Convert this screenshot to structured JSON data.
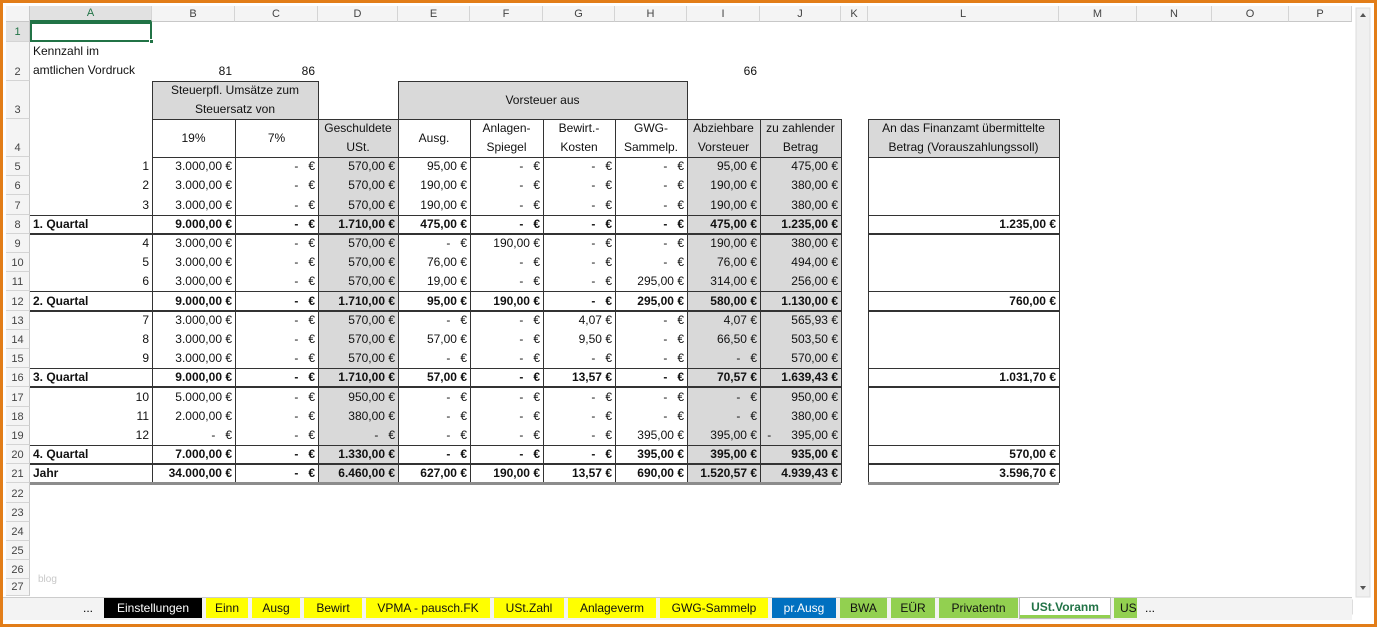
{
  "columns": [
    "A",
    "B",
    "C",
    "D",
    "E",
    "F",
    "G",
    "H",
    "I",
    "J",
    "K",
    "L",
    "M",
    "N",
    "O",
    "P"
  ],
  "rows": [
    {
      "number": "1",
      "cells": {}
    },
    {
      "number": "2",
      "cells": {
        "A": "Kennzahl im amtlichen Vordruck",
        "B": "81",
        "C": "86",
        "I": "66"
      }
    },
    {
      "number": "3",
      "cells": {
        "B": "Steuerpfl. Umsätze zum Steuersatz von",
        "E": "Vorsteuer aus"
      }
    },
    {
      "number": "4",
      "cells": {
        "B": "19%",
        "C": "7%",
        "D": "Geschuldete USt.",
        "E": "Ausg.",
        "F": "Anlagen-Spiegel",
        "G": "Bewirt.-Kosten",
        "H": "GWG-Sammelp.",
        "I": "Abziehbare Vorsteuer",
        "J": "zu zahlender Betrag",
        "L": "An das Finanzamt übermittelte Betrag (Vorauszahlungssoll)"
      }
    },
    {
      "number": "5",
      "cells": {
        "A": "1",
        "B": "3.000,00 €",
        "C": "-   €",
        "D": "570,00 €",
        "E": "95,00 €",
        "F": "-   €",
        "G": "-   €",
        "H": "-   €",
        "I": "95,00 €",
        "J": "475,00 €"
      }
    },
    {
      "number": "6",
      "cells": {
        "A": "2",
        "B": "3.000,00 €",
        "C": "-   €",
        "D": "570,00 €",
        "E": "190,00 €",
        "F": "-   €",
        "G": "-   €",
        "H": "-   €",
        "I": "190,00 €",
        "J": "380,00 €"
      }
    },
    {
      "number": "7",
      "cells": {
        "A": "3",
        "B": "3.000,00 €",
        "C": "-   €",
        "D": "570,00 €",
        "E": "190,00 €",
        "F": "-   €",
        "G": "-   €",
        "H": "-   €",
        "I": "190,00 €",
        "J": "380,00 €"
      }
    },
    {
      "number": "8",
      "cells": {
        "A": "1. Quartal",
        "B": "9.000,00 €",
        "C": "-   €",
        "D": "1.710,00 €",
        "E": "475,00 €",
        "F": "-   €",
        "G": "-   €",
        "H": "-   €",
        "I": "475,00 €",
        "J": "1.235,00 €",
        "L": "1.235,00 €"
      }
    },
    {
      "number": "9",
      "cells": {
        "A": "4",
        "B": "3.000,00 €",
        "C": "-   €",
        "D": "570,00 €",
        "E": "-   €",
        "F": "190,00 €",
        "G": "-   €",
        "H": "-   €",
        "I": "190,00 €",
        "J": "380,00 €"
      }
    },
    {
      "number": "10",
      "cells": {
        "A": "5",
        "B": "3.000,00 €",
        "C": "-   €",
        "D": "570,00 €",
        "E": "76,00 €",
        "F": "-   €",
        "G": "-   €",
        "H": "-   €",
        "I": "76,00 €",
        "J": "494,00 €"
      }
    },
    {
      "number": "11",
      "cells": {
        "A": "6",
        "B": "3.000,00 €",
        "C": "-   €",
        "D": "570,00 €",
        "E": "19,00 €",
        "F": "-   €",
        "G": "-   €",
        "H": "295,00 €",
        "I": "314,00 €",
        "J": "256,00 €"
      }
    },
    {
      "number": "12",
      "cells": {
        "A": "2. Quartal",
        "B": "9.000,00 €",
        "C": "-   €",
        "D": "1.710,00 €",
        "E": "95,00 €",
        "F": "190,00 €",
        "G": "-   €",
        "H": "295,00 €",
        "I": "580,00 €",
        "J": "1.130,00 €",
        "L": "760,00 €"
      }
    },
    {
      "number": "13",
      "cells": {
        "A": "7",
        "B": "3.000,00 €",
        "C": "-   €",
        "D": "570,00 €",
        "E": "-   €",
        "F": "-   €",
        "G": "4,07 €",
        "H": "-   €",
        "I": "4,07 €",
        "J": "565,93 €"
      }
    },
    {
      "number": "14",
      "cells": {
        "A": "8",
        "B": "3.000,00 €",
        "C": "-   €",
        "D": "570,00 €",
        "E": "57,00 €",
        "F": "-   €",
        "G": "9,50 €",
        "H": "-   €",
        "I": "66,50 €",
        "J": "503,50 €"
      }
    },
    {
      "number": "15",
      "cells": {
        "A": "9",
        "B": "3.000,00 €",
        "C": "-   €",
        "D": "570,00 €",
        "E": "-   €",
        "F": "-   €",
        "G": "-   €",
        "H": "-   €",
        "I": "-   €",
        "J": "570,00 €"
      }
    },
    {
      "number": "16",
      "cells": {
        "A": "3. Quartal",
        "B": "9.000,00 €",
        "C": "-   €",
        "D": "1.710,00 €",
        "E": "57,00 €",
        "F": "-   €",
        "G": "13,57 €",
        "H": "-   €",
        "I": "70,57 €",
        "J": "1.639,43 €",
        "L": "1.031,70 €"
      }
    },
    {
      "number": "17",
      "cells": {
        "A": "10",
        "B": "5.000,00 €",
        "C": "-   €",
        "D": "950,00 €",
        "E": "-   €",
        "F": "-   €",
        "G": "-   €",
        "H": "-   €",
        "I": "-   €",
        "J": "950,00 €"
      }
    },
    {
      "number": "18",
      "cells": {
        "A": "11",
        "B": "2.000,00 €",
        "C": "-   €",
        "D": "380,00 €",
        "E": "-   €",
        "F": "-   €",
        "G": "-   €",
        "H": "-   €",
        "I": "-   €",
        "J": "380,00 €"
      }
    },
    {
      "number": "19",
      "cells": {
        "A": "12",
        "B": "-   €",
        "C": "-   €",
        "D": "-   €",
        "E": "-   €",
        "F": "-   €",
        "G": "-   €",
        "H": "395,00 €",
        "I": "395,00 €",
        "J": "-      395,00 €"
      }
    },
    {
      "number": "20",
      "cells": {
        "A": "4. Quartal",
        "B": "7.000,00 €",
        "C": "-   €",
        "D": "1.330,00 €",
        "E": "-   €",
        "F": "-   €",
        "G": "-   €",
        "H": "395,00 €",
        "I": "395,00 €",
        "J": "935,00 €",
        "L": "570,00 €"
      }
    },
    {
      "number": "21",
      "cells": {
        "A": "Jahr",
        "B": "34.000,00 €",
        "C": "-   €",
        "D": "6.460,00 €",
        "E": "627,00 €",
        "F": "190,00 €",
        "G": "13,57 €",
        "H": "690,00 €",
        "I": "1.520,57 €",
        "J": "4.939,43 €",
        "L": "3.596,70 €"
      }
    },
    {
      "number": "22",
      "cells": {}
    },
    {
      "number": "23",
      "cells": {}
    },
    {
      "number": "24",
      "cells": {}
    },
    {
      "number": "25",
      "cells": {}
    },
    {
      "number": "26",
      "cells": {}
    },
    {
      "number": "27",
      "cells": {}
    }
  ],
  "watermark": "blog",
  "tab_bar": {
    "more_left": "...",
    "more_right": "...",
    "tabs": [
      {
        "name": "Einstellungen",
        "color": "#000000"
      },
      {
        "name": "Einn",
        "color": "#ffff00"
      },
      {
        "name": "Ausg",
        "color": "#ffff00"
      },
      {
        "name": "Bewirt",
        "color": "#ffff00"
      },
      {
        "name": "VPMA - pausch.FK",
        "color": "#ffff00"
      },
      {
        "name": "USt.Zahl",
        "color": "#ffff00"
      },
      {
        "name": "Anlageverm",
        "color": "#ffff00"
      },
      {
        "name": "GWG-Sammelp",
        "color": "#ffff00"
      },
      {
        "name": "pr.Ausg",
        "color": "#0070c0"
      },
      {
        "name": "BWA",
        "color": "#92d050"
      },
      {
        "name": "EÜR",
        "color": "#92d050"
      },
      {
        "name": "Privatentn",
        "color": "#92d050"
      },
      {
        "name": "USt.Voranm",
        "color": "#92d050",
        "active": true
      },
      {
        "name": "US",
        "color": "#92d050"
      }
    ]
  }
}
